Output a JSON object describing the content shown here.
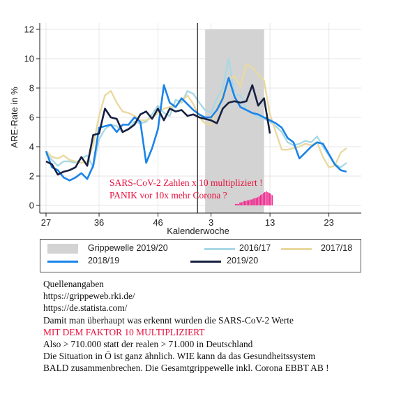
{
  "chart_data": {
    "type": "line",
    "xlabel": "Kalenderwoche",
    "ylabel": "ARE-Rate in %",
    "ylim": [
      0,
      12
    ],
    "yticks": [
      "0",
      "2",
      "4",
      "6",
      "8",
      "10",
      "12"
    ],
    "xticks": [
      "27",
      "36",
      "46",
      "3",
      "13",
      "23"
    ],
    "x_weeks": [
      27,
      28,
      29,
      30,
      31,
      32,
      33,
      34,
      35,
      36,
      37,
      38,
      39,
      40,
      41,
      42,
      43,
      44,
      45,
      46,
      47,
      48,
      49,
      50,
      51,
      52,
      1,
      2,
      3,
      4,
      5,
      6,
      7,
      8,
      9,
      10,
      11,
      12,
      13,
      14,
      15,
      16,
      17,
      18,
      19,
      20,
      21,
      22,
      23,
      24,
      25,
      26
    ],
    "grid": true,
    "annotation_lines": [
      "SARS-CoV-2 Zahlen x 10 multipliziert !",
      "PANIK vor 10x mehr Corona ?"
    ],
    "grippewelle_band": {
      "label": "Grippewelle 2019/20",
      "from_week": 2,
      "to_week": 12
    },
    "current_week_marker": 52,
    "series": [
      {
        "name": "2016/17",
        "color": "#a9d8e6",
        "values": [
          3.5,
          3.1,
          2.7,
          3.0,
          3.0,
          2.9,
          3.2,
          3.4,
          2.6,
          4.5,
          5.2,
          5.5,
          5.4,
          5.0,
          5.2,
          5.7,
          5.6,
          5.7,
          6.2,
          6.8,
          6.3,
          6.1,
          7.2,
          7.0,
          7.8,
          7.6,
          7.0,
          6.5,
          6.3,
          7.3,
          8.0,
          10.0,
          7.5,
          7.5,
          6.5,
          6.3,
          6.0,
          5.9,
          5.7,
          5.4,
          5.0,
          4.3,
          4.1,
          4.2,
          4.4,
          4.3,
          4.7,
          4.0,
          3.4,
          2.8,
          2.6,
          2.9
        ]
      },
      {
        "name": "2017/18",
        "color": "#ead9a0",
        "values": [
          3.7,
          3.3,
          3.2,
          3.4,
          3.1,
          3.0,
          2.9,
          3.0,
          4.1,
          6.1,
          7.5,
          7.8,
          7.0,
          6.4,
          6.3,
          6.1,
          5.8,
          5.8,
          6.0,
          6.3,
          6.6,
          6.7,
          6.8,
          7.1,
          7.5,
          6.9,
          6.0,
          5.6,
          5.5,
          6.6,
          7.6,
          8.6,
          8.8,
          8.1,
          9.6,
          9.4,
          8.9,
          8.5,
          6.2,
          5.0,
          3.8,
          3.8,
          3.9,
          4.0,
          4.2,
          4.1,
          4.3,
          3.3,
          2.6,
          2.7,
          3.6,
          3.9
        ]
      },
      {
        "name": "2018/19",
        "color": "#1a84e8",
        "values": [
          3.7,
          2.6,
          2.4,
          1.9,
          1.7,
          1.9,
          2.2,
          1.8,
          2.7,
          5.3,
          5.4,
          5.5,
          5.0,
          5.5,
          5.5,
          6.0,
          5.7,
          2.9,
          3.9,
          5.2,
          8.2,
          7.0,
          6.7,
          7.3,
          6.9,
          6.5,
          6.2,
          6.0,
          6.0,
          6.5,
          7.3,
          8.7,
          7.4,
          6.7,
          6.5,
          6.3,
          6.2,
          6.0,
          5.8,
          5.6,
          5.3,
          4.6,
          4.3,
          3.2,
          3.6,
          4.0,
          4.3,
          4.2,
          3.5,
          2.8,
          2.4,
          2.3
        ]
      },
      {
        "name": "2019/20",
        "color": "#162040",
        "values": [
          3.0,
          2.8,
          2.1,
          2.3,
          2.4,
          2.6,
          3.3,
          2.7,
          4.8,
          4.9,
          6.6,
          6.0,
          5.9,
          5.0,
          5.2,
          5.5,
          6.2,
          6.4,
          5.9,
          6.6,
          5.8,
          6.6,
          6.4,
          6.5,
          6.1,
          6.2,
          6.0,
          5.9,
          5.8,
          5.6,
          6.6,
          7.0,
          7.1,
          7.0,
          7.1,
          8.2,
          6.8,
          7.3,
          4.9
        ]
      }
    ]
  },
  "covid_bars_x10": [
    0.1,
    0.1,
    0.1,
    0.2,
    0.2,
    0.25,
    0.3,
    0.3,
    0.35,
    0.35,
    0.4,
    0.4,
    0.45,
    0.5,
    0.5,
    0.55,
    0.6,
    0.7,
    0.75,
    0.85,
    0.9,
    0.95,
    0.9,
    0.85,
    0.8,
    0.7
  ],
  "legend": [
    {
      "label": "Grippewelle 2019/20",
      "kind": "band",
      "color": "#d3d3d3"
    },
    {
      "label": "2016/17",
      "kind": "line",
      "color": "#a9d8e6"
    },
    {
      "label": "2017/18",
      "kind": "line",
      "color": "#ead9a0"
    },
    {
      "label": "2018/19",
      "kind": "line",
      "color": "#1a84e8"
    },
    {
      "label": "2019/20",
      "kind": "line",
      "color": "#162040"
    }
  ],
  "notes": [
    {
      "text": "Quellenangaben",
      "red": false
    },
    {
      "text": "https://grippeweb.rki.de/",
      "red": false
    },
    {
      "text": "https://de.statista.com/",
      "red": false
    },
    {
      "text": "Damit man überhaupt was erkennt wurden die SARS-CoV-2 Werte",
      "red": false
    },
    {
      "text": "MIT DEM FAKTOR 10 MULTIPLIZIERT",
      "red": true
    },
    {
      "text": "Also > 710.000 statt der realen > 71.000 in Deutschland",
      "red": false
    },
    {
      "text": "Die Situation in Ö ist ganz ähnlich. WIE kann da das Gesundheitssystem",
      "red": false
    },
    {
      "text": "BALD zusammenbrechen. Die Gesamtgrippewelle inkl. Corona EBBT AB !",
      "red": false
    }
  ]
}
